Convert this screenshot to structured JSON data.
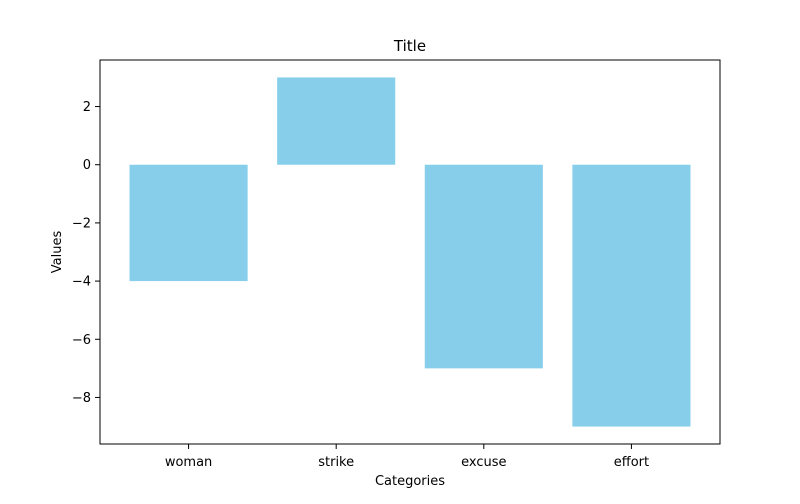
{
  "chart_data": {
    "type": "bar",
    "title": "Title",
    "xlabel": "Categories",
    "ylabel": "Values",
    "categories": [
      "woman",
      "strike",
      "excuse",
      "effort"
    ],
    "values": [
      -4,
      3,
      -7,
      -9
    ],
    "ylim": [
      -9.6,
      3.6
    ],
    "yticks": [
      2,
      0,
      -2,
      -4,
      -6,
      -8
    ],
    "ytick_labels": [
      "2",
      "0",
      "−2",
      "−4",
      "−6",
      "−8"
    ],
    "grid": false,
    "bar_color": "#87ceeb"
  }
}
